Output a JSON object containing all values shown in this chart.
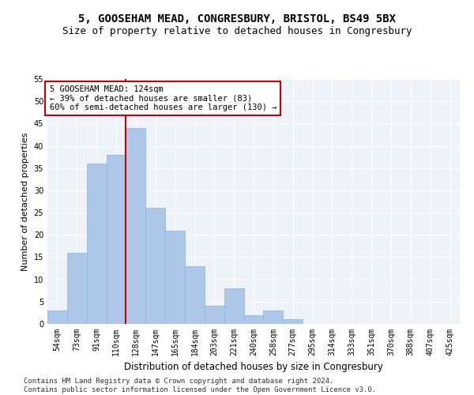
{
  "title1": "5, GOOSEHAM MEAD, CONGRESBURY, BRISTOL, BS49 5BX",
  "title2": "Size of property relative to detached houses in Congresbury",
  "xlabel": "Distribution of detached houses by size in Congresbury",
  "ylabel": "Number of detached properties",
  "categories": [
    "54sqm",
    "73sqm",
    "91sqm",
    "110sqm",
    "128sqm",
    "147sqm",
    "165sqm",
    "184sqm",
    "203sqm",
    "221sqm",
    "240sqm",
    "258sqm",
    "277sqm",
    "295sqm",
    "314sqm",
    "333sqm",
    "351sqm",
    "370sqm",
    "388sqm",
    "407sqm",
    "425sqm"
  ],
  "values": [
    3,
    16,
    36,
    38,
    44,
    26,
    21,
    13,
    4,
    8,
    2,
    3,
    1,
    0,
    0,
    0,
    0,
    0,
    0,
    0,
    0
  ],
  "bar_color": "#aec6e8",
  "bar_edge_color": "#8ab4d8",
  "vline_x_index": 4,
  "vline_color": "#cc0000",
  "annotation_line1": "5 GOOSEHAM MEAD: 124sqm",
  "annotation_line2": "← 39% of detached houses are smaller (83)",
  "annotation_line3": "60% of semi-detached houses are larger (130) →",
  "annotation_box_color": "white",
  "annotation_box_edge": "#cc0000",
  "ylim": [
    0,
    55
  ],
  "yticks": [
    0,
    5,
    10,
    15,
    20,
    25,
    30,
    35,
    40,
    45,
    50,
    55
  ],
  "footer": "Contains HM Land Registry data © Crown copyright and database right 2024.\nContains public sector information licensed under the Open Government Licence v3.0.",
  "background_color": "#eef2f9",
  "grid_color": "#ffffff",
  "title1_fontsize": 10,
  "title2_fontsize": 9,
  "xlabel_fontsize": 8.5,
  "ylabel_fontsize": 8,
  "tick_fontsize": 7,
  "annotation_fontsize": 7.5,
  "footer_fontsize": 6.5
}
